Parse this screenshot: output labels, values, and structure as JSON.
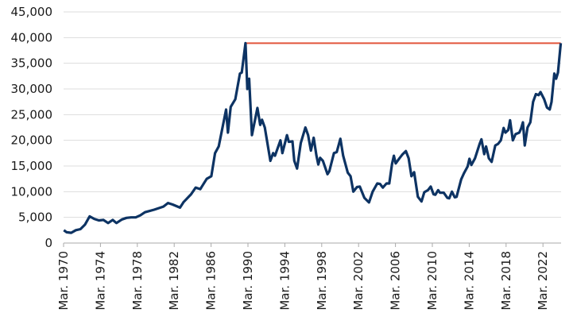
{
  "chart_data": {
    "type": "line",
    "title": "",
    "xlabel": "",
    "ylabel": "",
    "ylim": [
      0,
      45000
    ],
    "xlim": [
      1970.17,
      2024.1
    ],
    "grid": true,
    "y_ticks": [
      "0",
      "5,000",
      "10,000",
      "15,000",
      "20,000",
      "25,000",
      "30,000",
      "35,000",
      "40,000",
      "45,000"
    ],
    "x_ticks": [
      "Mar. 1970",
      "Mar. 1974",
      "Mar. 1978",
      "Mar. 1982",
      "Mar. 1986",
      "Mar. 1990",
      "Mar. 1994",
      "Mar. 1998",
      "Mar. 2002",
      "Mar. 2006",
      "Mar. 2010",
      "Mar. 2014",
      "Mar. 2018",
      "Mar. 2022"
    ],
    "colors": {
      "series": "#0d3363",
      "reference": "#e2553b",
      "grid": "#dddddd"
    },
    "reference_line": {
      "y": 38916,
      "x_from": 1989.9,
      "x_to": 2024.1
    },
    "series": [
      {
        "x": [
          1970.2,
          1970.5,
          1971.0,
          1971.5,
          1972.0,
          1972.5,
          1973.0,
          1973.5,
          1974.0,
          1974.5,
          1975.0,
          1975.5,
          1975.9,
          1976.5,
          1977.0,
          1977.5,
          1978.0,
          1978.5,
          1979.0,
          1980.0,
          1981.0,
          1981.5,
          1982.0,
          1982.8,
          1983.2,
          1984.0,
          1984.5,
          1985.0,
          1985.7,
          1986.2,
          1986.6,
          1987.0,
          1987.8,
          1988.0,
          1988.3,
          1988.8,
          1989.3,
          1989.5,
          1989.9,
          1990.1,
          1990.3,
          1990.6,
          1991.2,
          1991.5,
          1991.7,
          1992.0,
          1992.6,
          1992.9,
          1993.1,
          1993.7,
          1993.9,
          1994.4,
          1994.6,
          1995.0,
          1995.2,
          1995.5,
          1995.9,
          1996.4,
          1996.7,
          1997.0,
          1997.3,
          1997.6,
          1997.8,
          1998.0,
          1998.3,
          1998.8,
          1999.0,
          1999.5,
          1999.8,
          2000.2,
          2000.5,
          2001.0,
          2001.3,
          2001.6,
          2002.0,
          2002.3,
          2002.8,
          2003.3,
          2003.7,
          2004.2,
          2004.5,
          2004.8,
          2005.2,
          2005.5,
          2005.8,
          2006.0,
          2006.2,
          2006.6,
          2006.9,
          2007.3,
          2007.6,
          2007.9,
          2008.2,
          2008.6,
          2009.0,
          2009.3,
          2009.7,
          2010.0,
          2010.3,
          2010.5,
          2010.8,
          2011.0,
          2011.4,
          2011.8,
          2012.0,
          2012.3,
          2012.6,
          2012.8,
          2013.3,
          2013.6,
          2014.0,
          2014.2,
          2014.4,
          2014.8,
          2015.3,
          2015.5,
          2015.8,
          2016.0,
          2016.3,
          2016.6,
          2017.0,
          2017.3,
          2017.6,
          2017.9,
          2018.1,
          2018.4,
          2018.6,
          2018.9,
          2019.2,
          2019.6,
          2019.8,
          2020.0,
          2020.2,
          2020.5,
          2020.8,
          2021.1,
          2021.4,
          2021.7,
          2021.9,
          2022.3,
          2022.6,
          2022.9,
          2023.1,
          2023.4,
          2023.6,
          2023.8,
          2024.1
        ],
        "values": [
          2500,
          2100,
          2000,
          2500,
          2700,
          3600,
          5200,
          4700,
          4400,
          4500,
          3900,
          4500,
          3900,
          4600,
          4900,
          5000,
          5000,
          5400,
          6000,
          6500,
          7100,
          7800,
          7500,
          6900,
          8000,
          9500,
          10800,
          10500,
          12500,
          13000,
          17500,
          18800,
          26000,
          21500,
          26500,
          28000,
          33000,
          33200,
          38916,
          30000,
          32000,
          21000,
          26300,
          23000,
          24000,
          22500,
          16000,
          17500,
          17000,
          20000,
          17500,
          21000,
          19700,
          19800,
          16000,
          14500,
          19500,
          22500,
          21000,
          18000,
          20500,
          17000,
          15300,
          16600,
          16000,
          13400,
          14000,
          17500,
          17700,
          20300,
          17000,
          13700,
          13000,
          10000,
          10900,
          11000,
          8800,
          7900,
          10000,
          11600,
          11500,
          10800,
          11600,
          11600,
          15400,
          17000,
          15500,
          16500,
          17200,
          17900,
          16500,
          13000,
          13800,
          9000,
          8100,
          9900,
          10300,
          11000,
          9500,
          9400,
          10300,
          9800,
          9800,
          8800,
          8700,
          10000,
          8900,
          9000,
          12400,
          13600,
          14900,
          16400,
          15200,
          16500,
          19300,
          20200,
          17300,
          18800,
          16500,
          15800,
          19000,
          19300,
          20000,
          22400,
          21500,
          22000,
          23900,
          20000,
          21200,
          21500,
          22300,
          23500,
          19000,
          22500,
          23500,
          27500,
          29000,
          28800,
          29400,
          28000,
          26400,
          26000,
          27500,
          33000,
          32000,
          33200,
          38900
        ]
      }
    ]
  }
}
